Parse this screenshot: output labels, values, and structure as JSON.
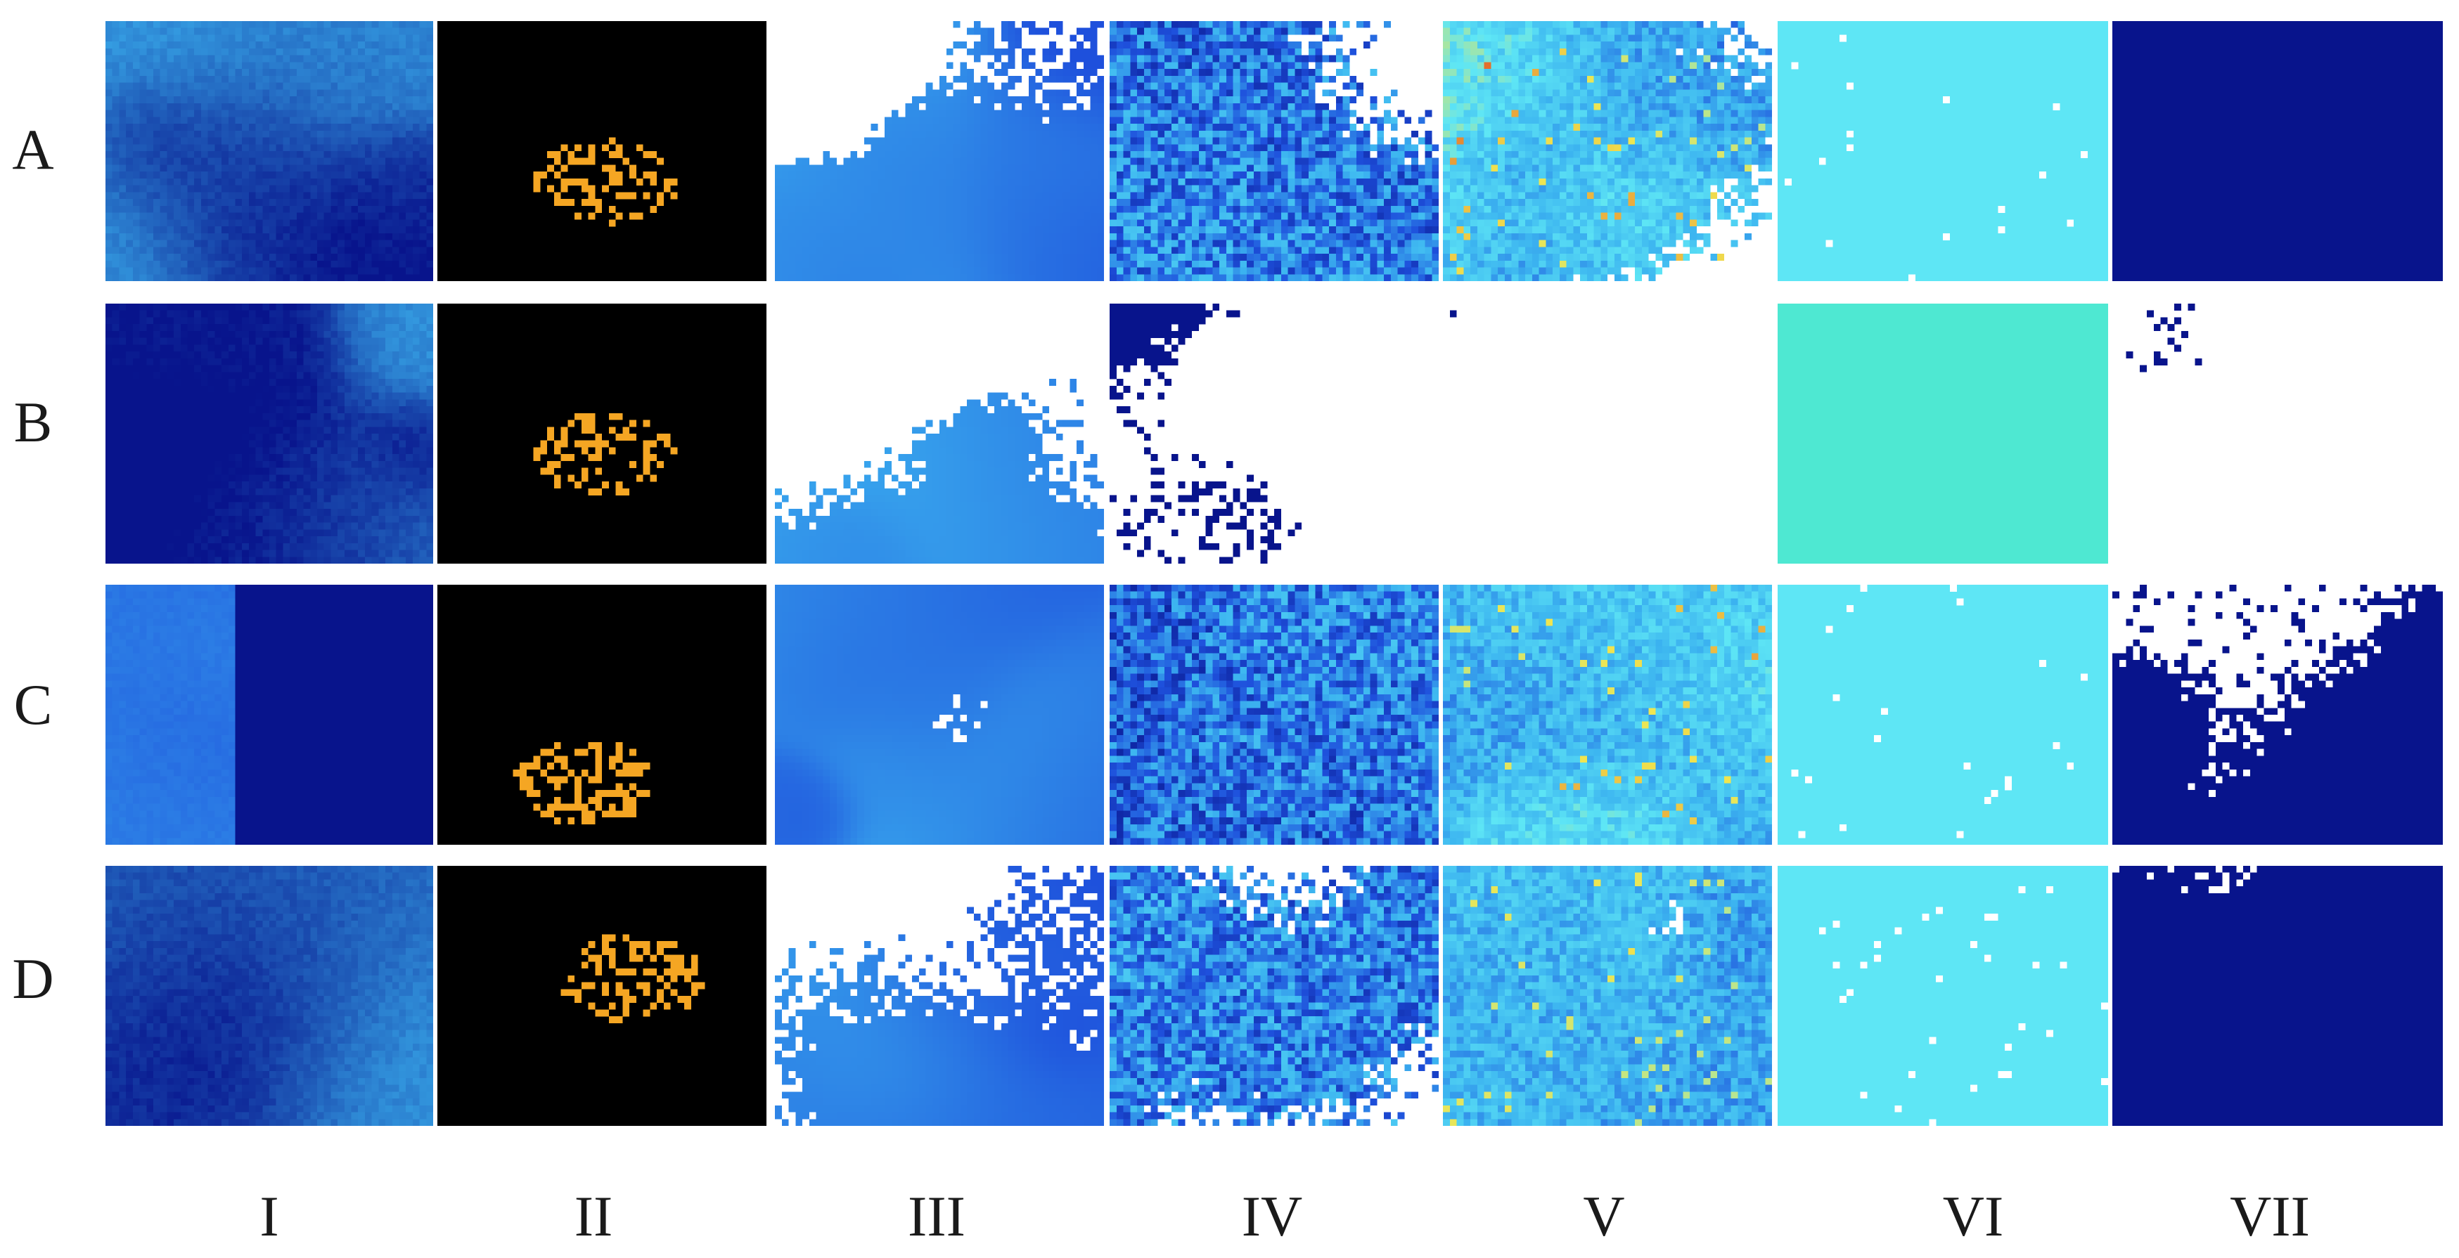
{
  "figure": {
    "row_labels": [
      "A",
      "B",
      "C",
      "D"
    ],
    "column_labels": [
      "I",
      "II",
      "III",
      "IV",
      "V",
      "VI",
      "VII"
    ]
  },
  "colors": {
    "background": "#ffffff",
    "mask_background": "#000000",
    "mask_foreground": "#f5a623",
    "deep_blue": "#08148c",
    "mid_blue": "#1e50dc",
    "light_blue": "#3cb4f0",
    "cyan": "#5ee6f5",
    "yellow": "#f0e650",
    "red": "#dc2814"
  },
  "panels": [
    {
      "row": "A",
      "col": "I",
      "style": "blue-cloud"
    },
    {
      "row": "A",
      "col": "II",
      "style": "mask"
    },
    {
      "row": "A",
      "col": "III",
      "style": "light-field"
    },
    {
      "row": "A",
      "col": "IV",
      "style": "noisy-field"
    },
    {
      "row": "A",
      "col": "V",
      "style": "hot-field"
    },
    {
      "row": "A",
      "col": "VI",
      "style": "cyan-flat"
    },
    {
      "row": "A",
      "col": "VII",
      "style": "binary"
    },
    {
      "row": "B",
      "col": "I",
      "style": "blue-cloud"
    },
    {
      "row": "B",
      "col": "II",
      "style": "mask"
    },
    {
      "row": "B",
      "col": "III",
      "style": "light-field"
    },
    {
      "row": "B",
      "col": "IV",
      "style": "sparse"
    },
    {
      "row": "B",
      "col": "V",
      "style": "sparse"
    },
    {
      "row": "B",
      "col": "VI",
      "style": "aqua-flat"
    },
    {
      "row": "B",
      "col": "VII",
      "style": "sparse"
    },
    {
      "row": "C",
      "col": "I",
      "style": "blue-split"
    },
    {
      "row": "C",
      "col": "II",
      "style": "mask"
    },
    {
      "row": "C",
      "col": "III",
      "style": "light-field"
    },
    {
      "row": "C",
      "col": "IV",
      "style": "noisy-field"
    },
    {
      "row": "C",
      "col": "V",
      "style": "hot-field"
    },
    {
      "row": "C",
      "col": "VI",
      "style": "cyan-flat"
    },
    {
      "row": "C",
      "col": "VII",
      "style": "binary"
    },
    {
      "row": "D",
      "col": "I",
      "style": "blue-cloud"
    },
    {
      "row": "D",
      "col": "II",
      "style": "mask"
    },
    {
      "row": "D",
      "col": "III",
      "style": "light-field"
    },
    {
      "row": "D",
      "col": "IV",
      "style": "noisy-field"
    },
    {
      "row": "D",
      "col": "V",
      "style": "hot-field"
    },
    {
      "row": "D",
      "col": "VI",
      "style": "cyan-flat"
    },
    {
      "row": "D",
      "col": "VII",
      "style": "binary"
    }
  ]
}
